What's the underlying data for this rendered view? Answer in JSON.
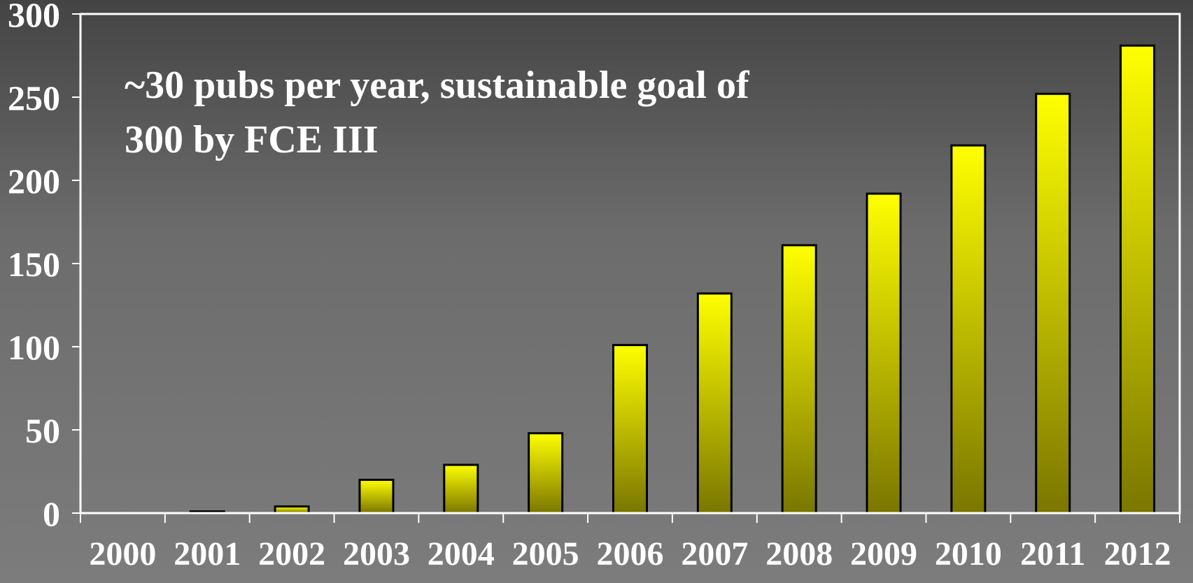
{
  "chart_data": {
    "type": "bar",
    "title": "",
    "xlabel": "",
    "ylabel": "",
    "annotation_lines": [
      "~30 pubs per year, sustainable goal of",
      "300 by FCE III"
    ],
    "categories": [
      "2000",
      "2001",
      "2002",
      "2003",
      "2004",
      "2005",
      "2006",
      "2007",
      "2008",
      "2009",
      "2010",
      "2011",
      "2012"
    ],
    "values": [
      0,
      1,
      4,
      20,
      29,
      48,
      101,
      132,
      161,
      192,
      221,
      252,
      281
    ],
    "ylim": [
      0,
      300
    ],
    "yticks": [
      "0",
      "50",
      "100",
      "150",
      "200",
      "250",
      "300"
    ],
    "grid": false,
    "legend": "none",
    "colors": {
      "bar_top": "#ffff00",
      "bar_bottom": "#7a7600",
      "bar_outline": "#000000",
      "frame": "#ffffff",
      "text": "#ffffff"
    }
  }
}
